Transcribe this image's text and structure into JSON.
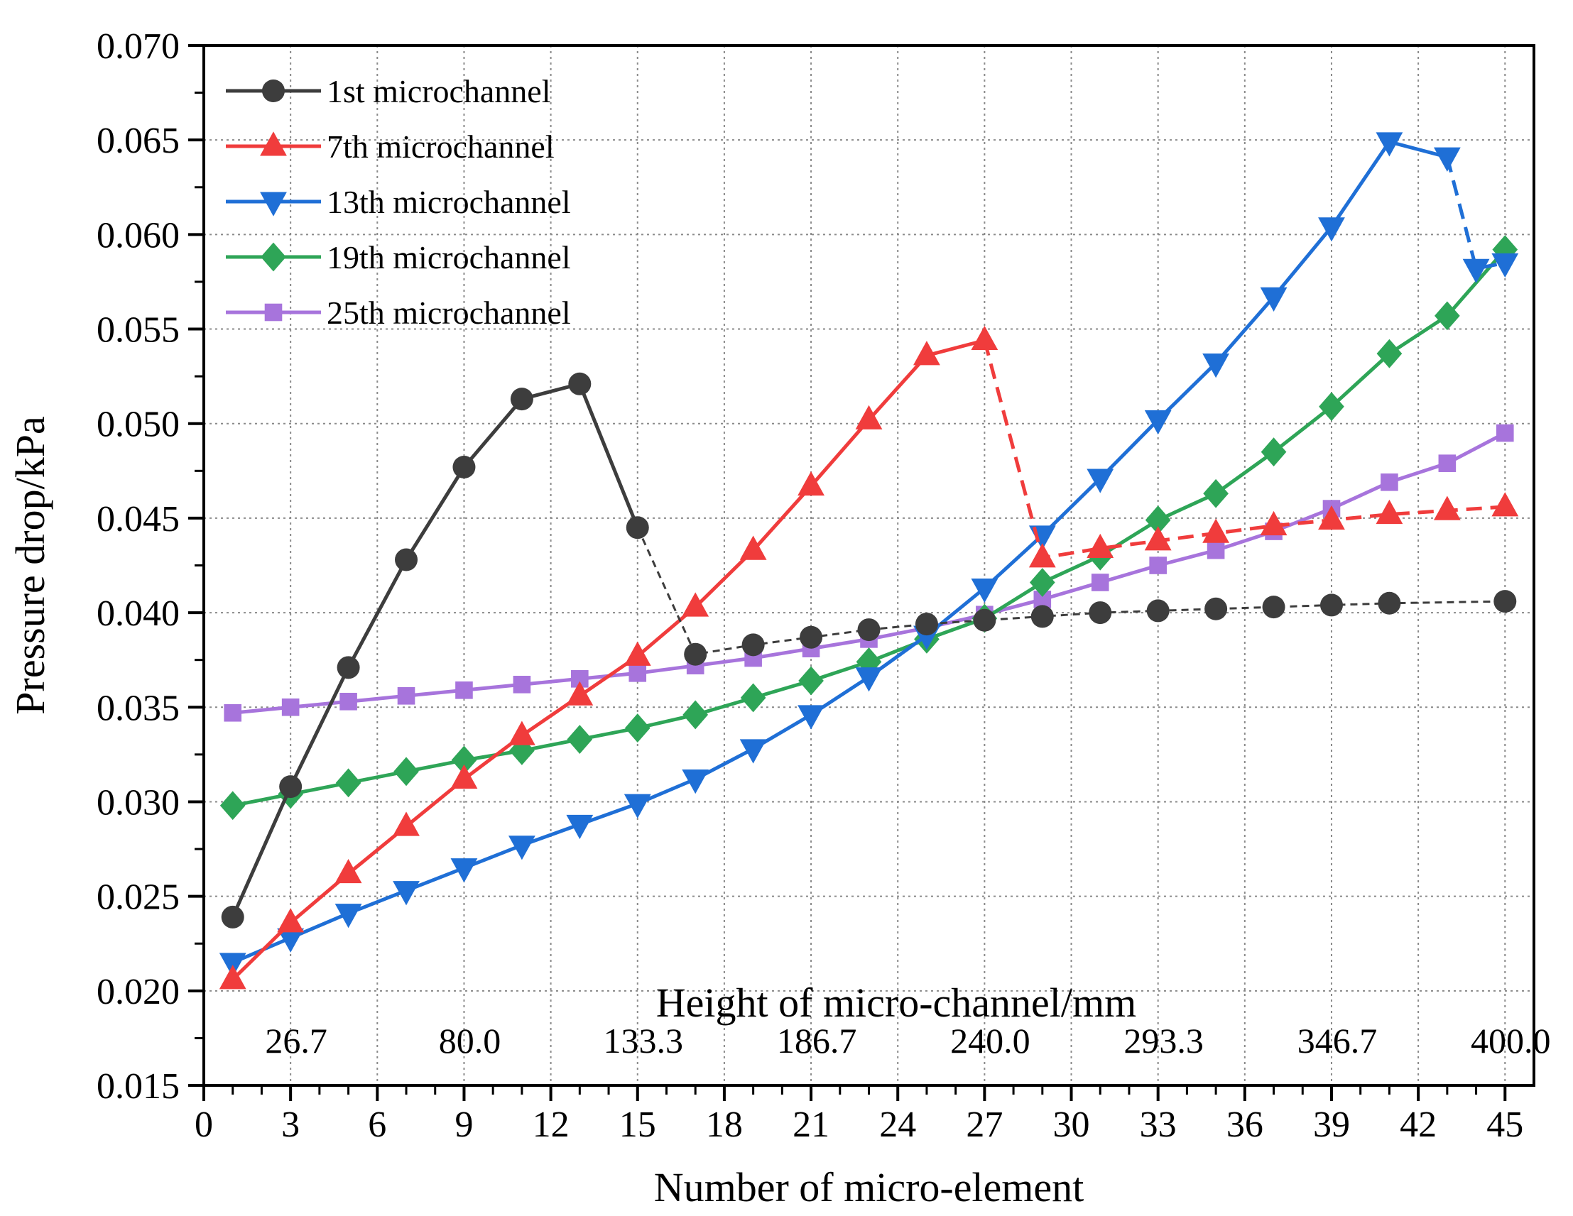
{
  "chart_data": {
    "type": "line",
    "title": "",
    "xlabel": "Number of micro-element",
    "ylabel": "Pressure drop/kPa",
    "xlim": [
      0,
      46
    ],
    "ylim": [
      0.015,
      0.07
    ],
    "x_ticks": [
      "0",
      "3",
      "6",
      "9",
      "12",
      "15",
      "18",
      "21",
      "24",
      "27",
      "30",
      "33",
      "36",
      "39",
      "42",
      "45"
    ],
    "y_ticks": [
      "0.015",
      "0.020",
      "0.025",
      "0.030",
      "0.035",
      "0.040",
      "0.045",
      "0.050",
      "0.055",
      "0.060",
      "0.065",
      "0.070"
    ],
    "secondary_axis": {
      "label": "Height of micro-channel/mm",
      "ticks": [
        {
          "x": 3,
          "label": "26.7"
        },
        {
          "x": 9,
          "label": "80.0"
        },
        {
          "x": 15,
          "label": "133.3"
        },
        {
          "x": 21,
          "label": "186.7"
        },
        {
          "x": 27,
          "label": "240.0"
        },
        {
          "x": 33,
          "label": "293.3"
        },
        {
          "x": 39,
          "label": "346.7"
        },
        {
          "x": 45,
          "label": "400.0"
        }
      ]
    },
    "grid": true,
    "legend_position": "top-left",
    "series": [
      {
        "name": "1st microchannel",
        "color": "#3d3d3d",
        "marker": "circle",
        "x": [
          1,
          3,
          5,
          7,
          9,
          11,
          13,
          15,
          17,
          19,
          21,
          23,
          25,
          27,
          29,
          31,
          33,
          35,
          37,
          39,
          41,
          45
        ],
        "values": [
          0.0239,
          0.0308,
          0.0371,
          0.0428,
          0.0477,
          0.0513,
          0.0521,
          0.0445,
          0.0378,
          0.0383,
          0.0387,
          0.0391,
          0.0394,
          0.0396,
          0.0398,
          0.04,
          0.0401,
          0.0402,
          0.0403,
          0.0404,
          0.0405,
          0.0406
        ],
        "break_after_index": 7
      },
      {
        "name": "7th microchannel",
        "color": "#f03c3c",
        "marker": "triangle-up",
        "x": [
          1,
          3,
          5,
          7,
          9,
          11,
          13,
          15,
          17,
          19,
          21,
          23,
          25,
          27,
          29,
          31,
          33,
          35,
          37,
          39,
          41,
          43,
          45
        ],
        "values": [
          0.0206,
          0.0236,
          0.0262,
          0.0287,
          0.0312,
          0.0335,
          0.0356,
          0.0377,
          0.0403,
          0.0433,
          0.0467,
          0.0502,
          0.0536,
          0.0544,
          0.0429,
          0.0434,
          0.0438,
          0.0442,
          0.0446,
          0.0449,
          0.0452,
          0.0454,
          0.0456
        ],
        "break_after_index": 13
      },
      {
        "name": "13th microchannel",
        "color": "#1f6fd6",
        "marker": "triangle-down",
        "x": [
          1,
          3,
          5,
          7,
          9,
          11,
          13,
          15,
          17,
          19,
          21,
          23,
          25,
          27,
          29,
          31,
          33,
          35,
          37,
          39,
          41,
          43,
          44,
          45
        ],
        "values": [
          0.0215,
          0.0228,
          0.0241,
          0.0253,
          0.0265,
          0.0277,
          0.0288,
          0.0299,
          0.0312,
          0.0328,
          0.0346,
          0.0366,
          0.0388,
          0.0413,
          0.0441,
          0.0471,
          0.0502,
          0.0532,
          0.0567,
          0.0604,
          0.0649,
          0.0641,
          0.0582,
          0.0585
        ],
        "break_after_index": 21
      },
      {
        "name": "19th microchannel",
        "color": "#2ea557",
        "marker": "diamond",
        "x": [
          1,
          3,
          5,
          7,
          9,
          11,
          13,
          15,
          17,
          19,
          21,
          23,
          25,
          27,
          29,
          31,
          33,
          35,
          37,
          39,
          41,
          43,
          45
        ],
        "values": [
          0.0298,
          0.0304,
          0.031,
          0.0316,
          0.0322,
          0.0327,
          0.0333,
          0.0339,
          0.0346,
          0.0355,
          0.0364,
          0.0374,
          0.0386,
          0.0397,
          0.0416,
          0.043,
          0.0449,
          0.0463,
          0.0485,
          0.0509,
          0.0537,
          0.0557,
          0.0592
        ]
      },
      {
        "name": "25th microchannel",
        "color": "#a774dc",
        "marker": "square",
        "x": [
          1,
          3,
          5,
          7,
          9,
          11,
          13,
          15,
          17,
          19,
          21,
          23,
          25,
          27,
          29,
          31,
          33,
          35,
          37,
          39,
          41,
          43,
          45
        ],
        "values": [
          0.0347,
          0.035,
          0.0353,
          0.0356,
          0.0359,
          0.0362,
          0.0365,
          0.0368,
          0.0372,
          0.0376,
          0.0381,
          0.0386,
          0.0392,
          0.0399,
          0.0407,
          0.0416,
          0.0425,
          0.0433,
          0.0443,
          0.0455,
          0.0469,
          0.0479,
          0.0495
        ]
      }
    ]
  }
}
